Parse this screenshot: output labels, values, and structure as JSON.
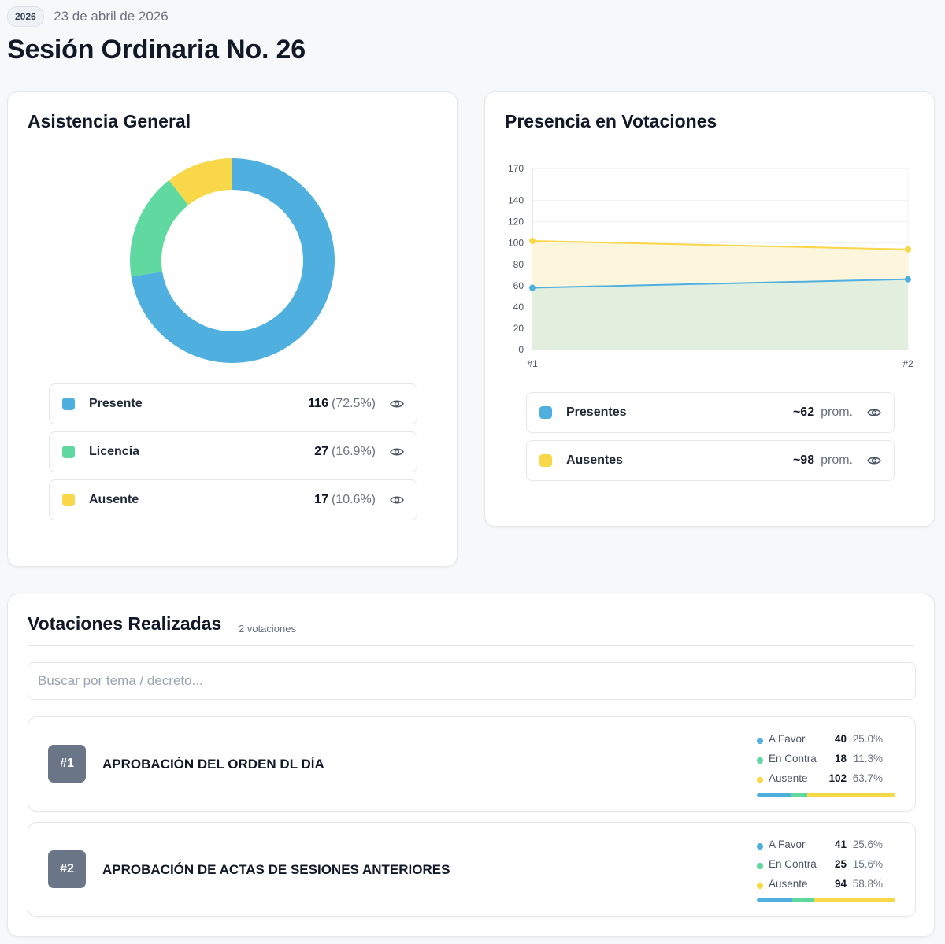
{
  "header": {
    "year": "2026",
    "date": "23 de abril de 2026",
    "title": "Sesión Ordinaria No. 26"
  },
  "colors": {
    "presente": "#4fb0e0",
    "licencia": "#5fd99f",
    "ausente": "#f8d748",
    "vote_badge": "#6b7588"
  },
  "asistencia": {
    "title": "Asistencia General",
    "items": [
      {
        "label": "Presente",
        "count": "116",
        "pct": "(72.5%)",
        "value": 116,
        "color": "#4fb0e0"
      },
      {
        "label": "Licencia",
        "count": "27",
        "pct": "(16.9%)",
        "value": 27,
        "color": "#5fd99f"
      },
      {
        "label": "Ausente",
        "count": "17",
        "pct": "(10.6%)",
        "value": 17,
        "color": "#f8d748"
      }
    ]
  },
  "presencia": {
    "title": "Presencia en Votaciones",
    "legend": [
      {
        "label": "Presentes",
        "value": "~62",
        "suffix": "prom.",
        "color": "#4fb0e0"
      },
      {
        "label": "Ausentes",
        "value": "~98",
        "suffix": "prom.",
        "color": "#f8d748"
      }
    ]
  },
  "chart_data": {
    "type": "area",
    "title": "Presencia en Votaciones",
    "categories": [
      "#1",
      "#2"
    ],
    "y_ticks": [
      0,
      20,
      40,
      60,
      80,
      100,
      120,
      140,
      170
    ],
    "ylim": [
      0,
      170
    ],
    "grid": true,
    "series": [
      {
        "name": "Ausentes",
        "values": [
          102,
          94
        ],
        "color": "#f8d748"
      },
      {
        "name": "Presentes",
        "values": [
          58,
          66
        ],
        "color": "#4fb0e0"
      }
    ]
  },
  "votaciones": {
    "title": "Votaciones Realizadas",
    "count_label": "2 votaciones",
    "search_placeholder": "Buscar por tema / decreto...",
    "items": [
      {
        "num": "#1",
        "title": "APROBACIÓN DEL ORDEN DL DÍA",
        "stats": [
          {
            "label": "A Favor",
            "count": "40",
            "pct": "25.0%",
            "value": 25.0
          },
          {
            "label": "En Contra",
            "count": "18",
            "pct": "11.3%",
            "value": 11.3
          },
          {
            "label": "Ausente",
            "count": "102",
            "pct": "63.7%",
            "value": 63.7
          }
        ]
      },
      {
        "num": "#2",
        "title": "APROBACIÓN DE ACTAS DE SESIONES ANTERIORES",
        "stats": [
          {
            "label": "A Favor",
            "count": "41",
            "pct": "25.6%",
            "value": 25.6
          },
          {
            "label": "En Contra",
            "count": "25",
            "pct": "15.6%",
            "value": 15.6
          },
          {
            "label": "Ausente",
            "count": "94",
            "pct": "58.8%",
            "value": 58.8
          }
        ]
      }
    ]
  }
}
